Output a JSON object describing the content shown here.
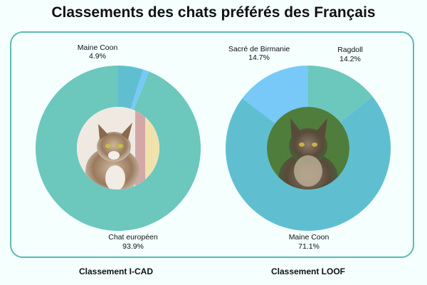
{
  "title": "Classements des chats préférés des Français",
  "chart_data": [
    {
      "type": "pie",
      "title": "Classement I-CAD",
      "style": "donut with cat photo in center",
      "slices": [
        {
          "label": "Chat européen",
          "value": 93.9,
          "value_label": "93.9%",
          "color": "#6cc7bd"
        },
        {
          "label": "Maine Coon",
          "value": 4.9,
          "value_label": "4.9%",
          "color": "#5fbfd1"
        },
        {
          "label": "",
          "value": 1.2,
          "value_label": "",
          "color": "#78c8f8"
        }
      ],
      "center_image": "tabby-cat-photo"
    },
    {
      "type": "pie",
      "title": "Classement LOOF",
      "style": "donut with cat photo in center",
      "slices": [
        {
          "label": "Ragdoll",
          "value": 14.2,
          "value_label": "14.2%",
          "color": "#6cc7bd"
        },
        {
          "label": "Maine Coon",
          "value": 71.1,
          "value_label": "71.1%",
          "color": "#5fbfd1"
        },
        {
          "label": "Sacré de Birmanie",
          "value": 14.7,
          "value_label": "14.7%",
          "color": "#78c8f8"
        }
      ],
      "center_image": "maine-coon-cat-photo"
    }
  ]
}
